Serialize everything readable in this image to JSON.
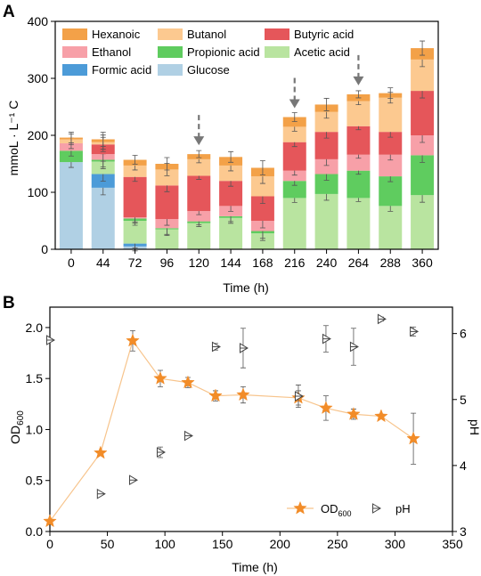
{
  "chart_data": [
    {
      "panel": "A",
      "type": "bar",
      "stacked": true,
      "xlabel": "Time (h)",
      "ylabel": "mmoL · L⁻¹ C",
      "ylim": [
        0,
        400
      ],
      "yticks": [
        0,
        100,
        200,
        300,
        400
      ],
      "categories": [
        "0",
        "44",
        "72",
        "96",
        "120",
        "144",
        "168",
        "216",
        "240",
        "264",
        "288",
        "360"
      ],
      "arrows_at": [
        "120",
        "216",
        "264"
      ],
      "legend": {
        "position": "top-left",
        "columns": 3
      },
      "series": [
        {
          "name": "Glucose",
          "color": "#b0d0e4",
          "values": [
            153,
            108,
            5,
            0,
            0,
            0,
            0,
            0,
            0,
            0,
            0,
            0
          ]
        },
        {
          "name": "Formic acid",
          "color": "#4c9bd8",
          "values": [
            0,
            24,
            5,
            0,
            0,
            0,
            0,
            0,
            0,
            0,
            0,
            0
          ]
        },
        {
          "name": "Acetic acid",
          "color": "#b9e4a0",
          "values": [
            0,
            22,
            40,
            35,
            46,
            55,
            28,
            90,
            97,
            90,
            76,
            95
          ]
        },
        {
          "name": "Propionic acid",
          "color": "#5fcc5f",
          "values": [
            20,
            3,
            4,
            2,
            3,
            3,
            4,
            30,
            35,
            48,
            52,
            70
          ]
        },
        {
          "name": "Ethanol",
          "color": "#f7a0a8",
          "values": [
            13,
            10,
            2,
            16,
            18,
            18,
            18,
            18,
            26,
            28,
            38,
            35
          ]
        },
        {
          "name": "Butyric acid",
          "color": "#e5565a",
          "values": [
            0,
            17,
            71,
            59,
            62,
            44,
            43,
            50,
            48,
            50,
            40,
            78
          ]
        },
        {
          "name": "Butanol",
          "color": "#fcc990",
          "values": [
            7,
            4,
            20,
            28,
            29,
            27,
            35,
            27,
            35,
            44,
            60,
            55
          ]
        },
        {
          "name": "Hexanoic",
          "color": "#f3a148",
          "values": [
            3,
            5,
            10,
            10,
            9,
            15,
            15,
            17,
            13,
            12,
            8,
            20
          ]
        }
      ]
    },
    {
      "panel": "B",
      "type": "scatter",
      "xlabel": "Time (h)",
      "xlim": [
        0,
        350
      ],
      "xticks": [
        0,
        50,
        100,
        150,
        200,
        250,
        300,
        350
      ],
      "ylabel_left": "OD",
      "ylabel_left_sub": "600",
      "ylim_left": [
        0,
        2.2
      ],
      "yticks_left": [
        "0.0",
        "0.5",
        "1.0",
        "1.5",
        "2.0"
      ],
      "ylabel_right": "pH",
      "ylim_right": [
        3,
        6.4
      ],
      "yticks_right": [
        3,
        4,
        5,
        6
      ],
      "legend": {
        "position": "bottom-right"
      },
      "series": [
        {
          "name": "OD",
          "name_sub": "600",
          "axis": "left",
          "marker": "star",
          "color": "#f28c28",
          "line": true,
          "x": [
            0,
            44,
            72,
            96,
            120,
            144,
            168,
            216,
            240,
            264,
            288,
            316
          ],
          "y": [
            0.1,
            0.77,
            1.87,
            1.5,
            1.46,
            1.33,
            1.34,
            1.31,
            1.21,
            1.15,
            1.13,
            0.91
          ],
          "err": [
            0,
            0,
            0.1,
            0.08,
            0.05,
            0.05,
            0.08,
            0.07,
            0.12,
            0.05,
            0.02,
            0.25
          ]
        },
        {
          "name": "pH",
          "axis": "right",
          "marker": "triangle-right",
          "color": "#444444",
          "line": false,
          "x": [
            0,
            44,
            72,
            96,
            120,
            144,
            168,
            216,
            240,
            264,
            288,
            316
          ],
          "y": [
            5.9,
            3.57,
            3.78,
            4.2,
            4.45,
            5.8,
            5.78,
            5.05,
            5.92,
            5.8,
            6.22,
            6.03
          ],
          "err": [
            0,
            0,
            0,
            0.08,
            0,
            0.05,
            0.3,
            0.17,
            0.2,
            0.28,
            0.03,
            0.07
          ]
        }
      ]
    }
  ]
}
